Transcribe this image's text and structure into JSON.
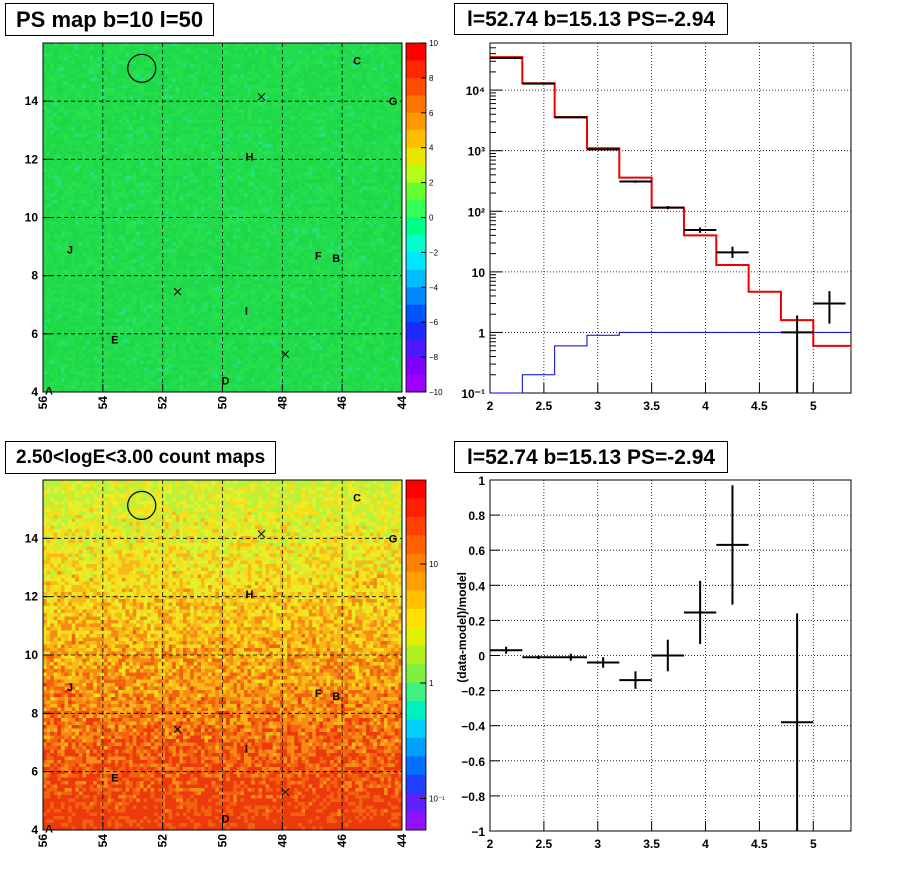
{
  "chart_data": [
    {
      "type": "heatmap",
      "title": "PS map b=10 l=50",
      "x_range": [
        56,
        44
      ],
      "y_range": [
        4,
        16
      ],
      "x_ticks": [
        "56",
        "54",
        "52",
        "50",
        "48",
        "46",
        "44"
      ],
      "y_ticks": [
        "4",
        "6",
        "8",
        "10",
        "12",
        "14"
      ],
      "z_range": [
        -10,
        10
      ],
      "z_ticks": [
        "10",
        "8",
        "6",
        "4",
        "2",
        "0",
        "−2",
        "−4",
        "−6",
        "−8",
        "−10"
      ],
      "grid": true,
      "colorbar": "right",
      "sources": [
        {
          "label": "C",
          "l": 45.5,
          "b": 15.4
        },
        {
          "label": "G",
          "l": 44.3,
          "b": 14.0
        },
        {
          "label": "H",
          "l": 49.1,
          "b": 12.1
        },
        {
          "label": "J",
          "l": 55.1,
          "b": 8.9
        },
        {
          "label": "F",
          "l": 46.8,
          "b": 8.7
        },
        {
          "label": "B",
          "l": 46.2,
          "b": 8.6
        },
        {
          "label": "I",
          "l": 49.2,
          "b": 6.8
        },
        {
          "label": "E",
          "l": 53.6,
          "b": 5.8
        },
        {
          "label": "D",
          "l": 49.9,
          "b": 4.4
        },
        {
          "label": "A",
          "l": 55.8,
          "b": 4.05
        }
      ],
      "crosses": [
        {
          "l": 48.7,
          "b": 14.15
        },
        {
          "l": 51.5,
          "b": 7.45
        },
        {
          "l": 47.9,
          "b": 5.3
        }
      ],
      "circle": {
        "l": 52.7,
        "b": 15.13
      }
    },
    {
      "type": "line",
      "title": "l=52.74 b=15.13 PS=-2.94",
      "xlim": [
        2,
        5.35
      ],
      "ylim": [
        0.1,
        60000
      ],
      "yscale": "log",
      "x_ticks": [
        "2",
        "2.5",
        "3",
        "3.5",
        "4",
        "4.5",
        "5"
      ],
      "y_ticks": [
        "10⁻¹",
        "1",
        "10",
        "10²",
        "10³",
        "10⁴"
      ],
      "grid": true,
      "series": [
        {
          "style": "red-step",
          "edges": [
            2.0,
            2.3,
            2.6,
            2.9,
            3.2,
            3.5,
            3.8,
            4.1,
            4.4,
            4.7,
            5.0,
            5.35
          ],
          "values": [
            35000,
            13000,
            3600,
            1100,
            360,
            115,
            40,
            13,
            4.7,
            1.6,
            0.6
          ]
        },
        {
          "style": "blue-step",
          "edges": [
            2.0,
            2.3,
            2.6,
            2.9,
            3.2,
            3.5,
            3.8,
            4.1,
            4.4,
            4.7,
            5.0,
            5.35
          ],
          "values": [
            0.1,
            0.2,
            0.6,
            0.9,
            1.0,
            1.0,
            1.0,
            1.0,
            1.0,
            1.0,
            1.0
          ]
        },
        {
          "style": "black-points",
          "x": [
            2.15,
            2.45,
            2.75,
            3.05,
            3.35,
            3.65,
            3.95,
            4.25,
            4.85,
            5.15
          ],
          "y": [
            34000,
            12800,
            3550,
            1050,
            310,
            115,
            49,
            21,
            1.0,
            3.0
          ],
          "xerr": [
            0.15,
            0.15,
            0.15,
            0.15,
            0.15,
            0.15,
            0.15,
            0.15,
            0.15,
            0.15
          ],
          "ylo": [
            34000,
            12800,
            3550,
            1050,
            295,
            108,
            44,
            17,
            0.1,
            1.4
          ],
          "yhi": [
            34000,
            12800,
            3550,
            1050,
            325,
            122,
            54,
            26,
            1.9,
            4.8
          ]
        }
      ]
    },
    {
      "type": "heatmap",
      "title": "2.50<logE<3.00 count maps",
      "x_range": [
        56,
        44
      ],
      "y_range": [
        4,
        16
      ],
      "x_ticks": [
        "56",
        "54",
        "52",
        "50",
        "48",
        "46",
        "44"
      ],
      "y_ticks": [
        "4",
        "6",
        "8",
        "10",
        "12",
        "14"
      ],
      "z_scale": "log",
      "z_ticks": [
        "10",
        "1",
        "10⁻¹"
      ],
      "grid": true,
      "colorbar": "right",
      "sources": [
        {
          "label": "C",
          "l": 45.5,
          "b": 15.4
        },
        {
          "label": "G",
          "l": 44.3,
          "b": 14.0
        },
        {
          "label": "H",
          "l": 49.1,
          "b": 12.1
        },
        {
          "label": "J",
          "l": 55.1,
          "b": 8.9
        },
        {
          "label": "F",
          "l": 46.8,
          "b": 8.7
        },
        {
          "label": "B",
          "l": 46.2,
          "b": 8.6
        },
        {
          "label": "I",
          "l": 49.2,
          "b": 6.8
        },
        {
          "label": "E",
          "l": 53.6,
          "b": 5.8
        },
        {
          "label": "D",
          "l": 49.9,
          "b": 4.4
        },
        {
          "label": "A",
          "l": 55.8,
          "b": 4.05
        }
      ],
      "crosses": [
        {
          "l": 48.7,
          "b": 14.15
        },
        {
          "l": 51.5,
          "b": 7.45
        },
        {
          "l": 47.9,
          "b": 5.3
        }
      ],
      "circle": {
        "l": 52.7,
        "b": 15.13
      }
    },
    {
      "type": "scatter",
      "title": "l=52.74 b=15.13 PS=-2.94",
      "ylabel": "(data-model)/model",
      "xlim": [
        2,
        5.35
      ],
      "ylim": [
        -1,
        1
      ],
      "x_ticks": [
        "2",
        "2.5",
        "3",
        "3.5",
        "4",
        "4.5",
        "5"
      ],
      "y_ticks": [
        "1",
        "0.8",
        "0.6",
        "0.4",
        "0.2",
        "0",
        "−0.2",
        "−0.4",
        "−0.6",
        "−0.8",
        "−1"
      ],
      "grid": true,
      "points": {
        "x": [
          2.15,
          2.45,
          2.75,
          3.05,
          3.35,
          3.65,
          3.95,
          4.25,
          4.85
        ],
        "y": [
          0.03,
          -0.01,
          -0.01,
          -0.04,
          -0.14,
          0.0,
          0.245,
          0.63,
          -0.38
        ],
        "xerr": [
          0.15,
          0.15,
          0.15,
          0.15,
          0.15,
          0.15,
          0.15,
          0.15,
          0.15
        ],
        "yerr": [
          0.02,
          0.01,
          0.02,
          0.03,
          0.05,
          0.09,
          0.18,
          0.34,
          0.62
        ]
      }
    }
  ]
}
